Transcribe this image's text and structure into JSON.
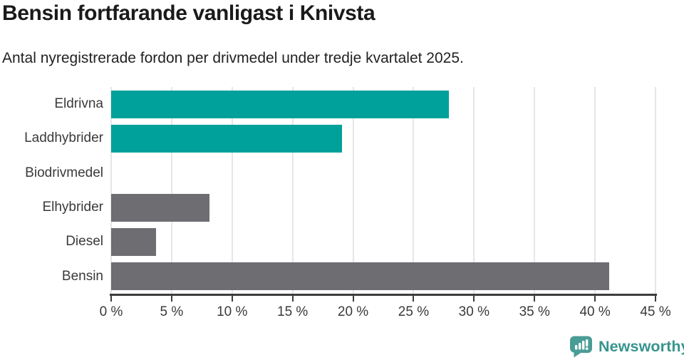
{
  "chart_data": {
    "type": "bar",
    "orientation": "horizontal",
    "title": "Bensin fortfarande vanligast i Knivsta",
    "subtitle": "Antal nyregistrerade fordon per drivmedel under tredje kvartalet 2025.",
    "categories": [
      "Eldrivna",
      "Laddhybrider",
      "Biodrivmedel",
      "Elhybrider",
      "Diesel",
      "Bensin"
    ],
    "values": [
      27.9,
      19.1,
      0,
      8.1,
      3.7,
      41.2
    ],
    "unit": "%",
    "xlabel": "",
    "ylabel": "",
    "xlim": [
      0,
      45
    ],
    "x_ticks": [
      0,
      5,
      10,
      15,
      20,
      25,
      30,
      35,
      40,
      45
    ],
    "x_tick_labels": [
      "0 %",
      "5 %",
      "10 %",
      "15 %",
      "20 %",
      "25 %",
      "30 %",
      "35 %",
      "40 %",
      "45 %"
    ],
    "grid": "vertical",
    "legend": "none",
    "bar_colors": [
      "#00A19A",
      "#00A19A",
      "#6D6D72",
      "#6D6D72",
      "#6D6D72",
      "#6D6D72"
    ]
  },
  "branding": {
    "logo_text": "Newsworthy",
    "logo_icon": "bar-chart-speech-bubble",
    "logo_color": "#37948E"
  },
  "colors": {
    "teal": "#00A19A",
    "gray": "#6D6D72",
    "axis_line": "#3D3D3D",
    "gridline": "#E4E6E7",
    "label_text": "#3A3A3A",
    "title_text": "#1A1A1A",
    "subtitle_text": "#222222"
  }
}
